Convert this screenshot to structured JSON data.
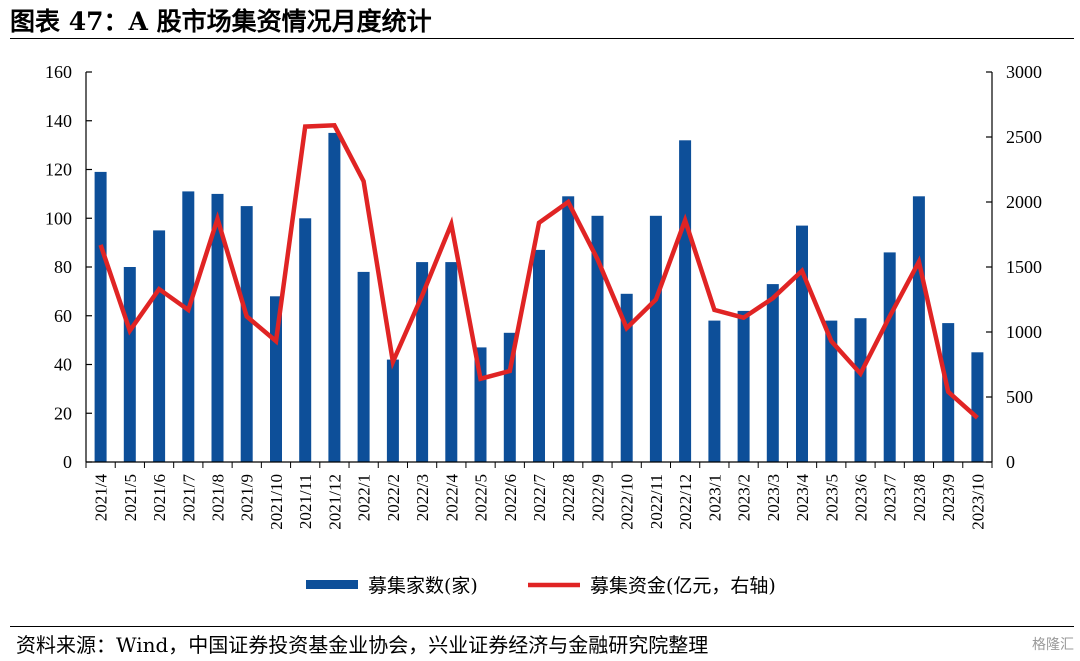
{
  "title": "图表 47：A 股市场集资情况月度统计",
  "source": "资料来源：Wind，中国证券投资基金业协会，兴业证券经济与金融研究院整理",
  "watermark": "格隆汇",
  "colors": {
    "bar": "#0d4f99",
    "line": "#e02424"
  },
  "chart_data": {
    "type": "bar+line",
    "categories": [
      "2021/4",
      "2021/5",
      "2021/6",
      "2021/7",
      "2021/8",
      "2021/9",
      "2021/10",
      "2021/11",
      "2021/12",
      "2022/1",
      "2022/2",
      "2022/3",
      "2022/4",
      "2022/5",
      "2022/6",
      "2022/7",
      "2022/8",
      "2022/9",
      "2022/10",
      "2022/11",
      "2022/12",
      "2023/1",
      "2023/2",
      "2023/3",
      "2023/4",
      "2023/5",
      "2023/6",
      "2023/7",
      "2023/8",
      "2023/9",
      "2023/10"
    ],
    "series": [
      {
        "name": "募集家数(家)",
        "type": "bar",
        "axis": "left",
        "values": [
          119,
          80,
          95,
          111,
          110,
          105,
          68,
          100,
          135,
          78,
          42,
          82,
          82,
          47,
          53,
          87,
          109,
          101,
          69,
          101,
          132,
          58,
          62,
          73,
          97,
          58,
          59,
          86,
          109,
          57,
          45
        ]
      },
      {
        "name": "募集资金(亿元，右轴)",
        "type": "line",
        "axis": "right",
        "values": [
          1670,
          1010,
          1330,
          1170,
          1870,
          1120,
          930,
          2580,
          2590,
          2160,
          770,
          1280,
          1830,
          640,
          700,
          1840,
          2000,
          1560,
          1030,
          1250,
          1860,
          1170,
          1110,
          1260,
          1470,
          930,
          680,
          1120,
          1540,
          540,
          340
        ]
      }
    ],
    "yleft": {
      "min": 0,
      "max": 160,
      "ticks": [
        0,
        20,
        40,
        60,
        80,
        100,
        120,
        140,
        160
      ]
    },
    "yright": {
      "min": 0,
      "max": 3000,
      "ticks": [
        0,
        500,
        1000,
        1500,
        2000,
        2500,
        3000
      ]
    },
    "legend_position": "bottom"
  }
}
